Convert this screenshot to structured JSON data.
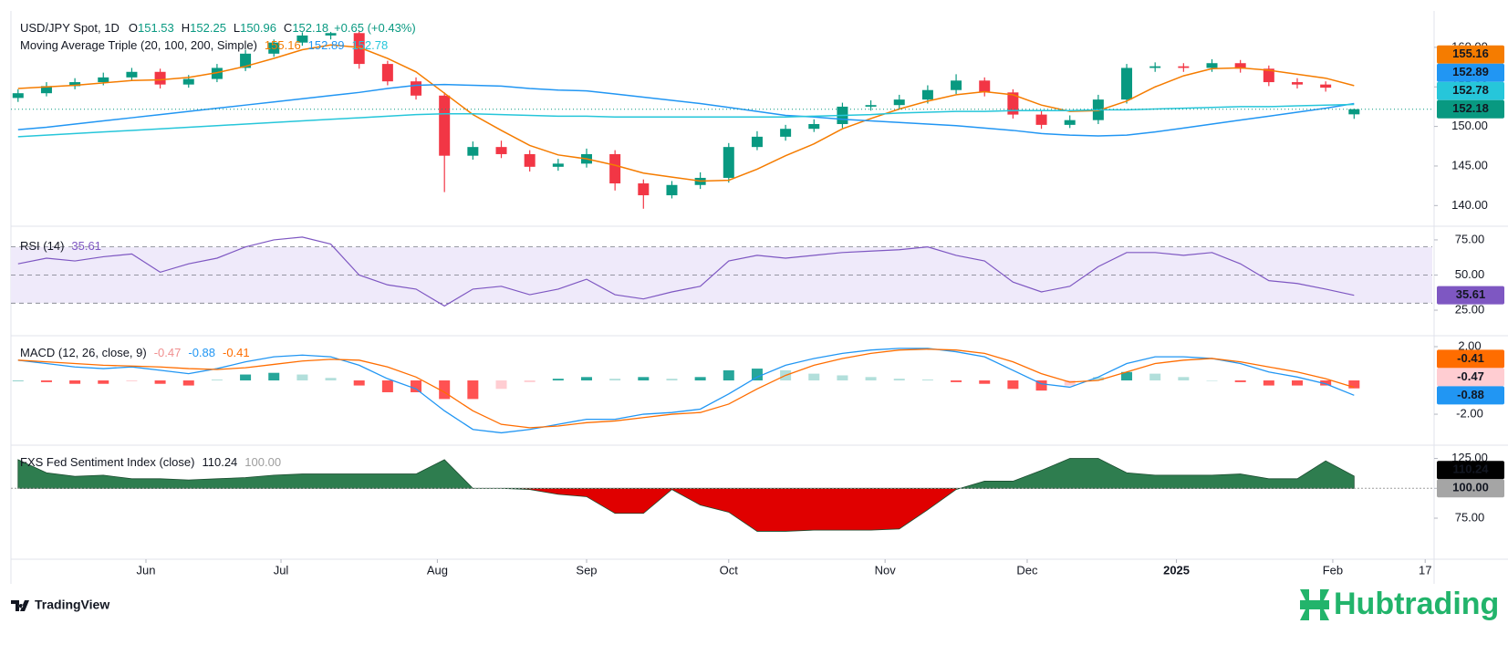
{
  "chart_data": [
    {
      "type": "candlestick",
      "title": "USD/JPY Spot, 1D",
      "ohlc_labels": [
        "O",
        "H",
        "L",
        "C"
      ],
      "change": "+0.65 (+0.43%)",
      "x": [
        0,
        4,
        8,
        12,
        16,
        20,
        24,
        28,
        32,
        36,
        40,
        44,
        48,
        52,
        56,
        60,
        64,
        68,
        72,
        76,
        80,
        84,
        88,
        92,
        96,
        100,
        104,
        108,
        112,
        116,
        120,
        124,
        128,
        132,
        136,
        140,
        144,
        148,
        152,
        156,
        160,
        164,
        168,
        172,
        176,
        180,
        184,
        188
      ],
      "xlim": [
        -1,
        199
      ],
      "xticks": [
        {
          "value": 18,
          "label": "Jun"
        },
        {
          "value": 37,
          "label": "Jul"
        },
        {
          "value": 59,
          "label": "Aug"
        },
        {
          "value": 80,
          "label": "Sep"
        },
        {
          "value": 100,
          "label": "Oct"
        },
        {
          "value": 122,
          "label": "Nov"
        },
        {
          "value": 142,
          "label": "Dec"
        },
        {
          "value": 163,
          "label": "2025"
        },
        {
          "value": 185,
          "label": "Feb"
        },
        {
          "value": 198,
          "label": "17"
        }
      ],
      "open": [
        153.6,
        154.2,
        155.1,
        155.6,
        156.2,
        156.9,
        155.3,
        156.0,
        157.4,
        159.2,
        160.6,
        161.5,
        161.8,
        157.9,
        155.7,
        153.9,
        146.3,
        147.4,
        146.5,
        144.9,
        145.3,
        146.5,
        142.8,
        141.3,
        142.6,
        143.5,
        147.4,
        148.7,
        149.7,
        150.3,
        152.5,
        152.7,
        153.4,
        154.6,
        155.8,
        154.3,
        151.5,
        150.2,
        150.8,
        153.4,
        157.4,
        157.6,
        157.4,
        158.0,
        157.3,
        155.6,
        155.3,
        151.53
      ],
      "high": [
        154.7,
        155.6,
        156.1,
        156.8,
        157.4,
        157.3,
        156.5,
        157.9,
        159.7,
        161.0,
        161.9,
        161.95,
        162.0,
        158.3,
        156.2,
        154.3,
        148.1,
        148.2,
        147.0,
        145.9,
        147.2,
        147.0,
        143.3,
        143.1,
        144.2,
        147.9,
        149.4,
        150.2,
        150.9,
        153.0,
        153.3,
        154.0,
        155.2,
        156.6,
        156.2,
        154.7,
        152.0,
        151.4,
        154.0,
        157.9,
        158.1,
        158.0,
        158.5,
        158.4,
        157.7,
        156.1,
        155.7,
        152.25
      ],
      "low": [
        153.1,
        153.8,
        154.7,
        155.2,
        155.8,
        154.8,
        154.9,
        155.6,
        157.0,
        158.8,
        160.2,
        161.0,
        157.3,
        155.2,
        153.4,
        141.7,
        145.8,
        146.0,
        144.3,
        144.4,
        144.8,
        141.9,
        139.6,
        140.9,
        142.1,
        142.9,
        147.0,
        148.2,
        149.3,
        149.8,
        152.0,
        152.2,
        152.9,
        154.1,
        153.8,
        151.0,
        149.7,
        149.8,
        150.3,
        152.9,
        156.9,
        156.9,
        156.9,
        156.8,
        155.1,
        154.8,
        154.4,
        150.96
      ],
      "close": [
        154.2,
        155.1,
        155.6,
        156.2,
        156.9,
        155.3,
        156.0,
        157.4,
        159.2,
        160.6,
        161.5,
        161.8,
        157.9,
        155.7,
        153.9,
        146.3,
        147.4,
        146.5,
        144.9,
        145.3,
        146.5,
        142.8,
        141.3,
        142.6,
        143.5,
        147.4,
        148.7,
        149.7,
        150.3,
        152.5,
        152.7,
        153.4,
        154.6,
        155.8,
        154.3,
        151.5,
        150.2,
        150.8,
        153.4,
        157.4,
        157.6,
        157.4,
        158.0,
        157.3,
        155.6,
        155.3,
        154.9,
        152.18
      ],
      "up_color": "#089981",
      "down_color": "#f23645",
      "ylim": [
        137.5,
        164.6
      ],
      "yticks": [
        {
          "value": 140,
          "label": "140.00"
        },
        {
          "value": 145,
          "label": "145.00"
        },
        {
          "value": 150,
          "label": "150.00"
        },
        {
          "value": 155,
          "label": "155.00"
        },
        {
          "value": 160,
          "label": "160.00"
        }
      ],
      "ma_title": "Moving Average Triple (20, 100, 200, Simple)",
      "ma_lines": [
        {
          "color": "#f57c00",
          "values": [
            154.8,
            155.0,
            155.2,
            155.5,
            155.8,
            155.9,
            156.2,
            156.8,
            157.6,
            158.6,
            159.7,
            160.3,
            160.0,
            158.6,
            156.9,
            154.2,
            151.5,
            149.5,
            147.6,
            146.4,
            145.9,
            145.1,
            144.1,
            143.6,
            143.1,
            143.2,
            144.6,
            146.3,
            147.8,
            149.7,
            151.0,
            152.2,
            153.2,
            154.0,
            154.4,
            154.0,
            152.7,
            151.9,
            152.0,
            153.2,
            155.0,
            156.4,
            157.3,
            157.4,
            157.1,
            156.6,
            156.1,
            155.16
          ]
        },
        {
          "color": "#2196f3",
          "values": [
            149.6,
            149.9,
            150.3,
            150.7,
            151.1,
            151.5,
            151.9,
            152.3,
            152.7,
            153.1,
            153.5,
            153.9,
            154.3,
            154.8,
            155.2,
            155.3,
            155.2,
            155.1,
            154.8,
            154.6,
            154.5,
            154.1,
            153.7,
            153.3,
            152.9,
            152.4,
            151.9,
            151.4,
            151.2,
            150.9,
            150.7,
            150.5,
            150.3,
            150.1,
            149.8,
            149.5,
            149.1,
            148.9,
            148.8,
            148.9,
            149.3,
            149.8,
            150.3,
            150.8,
            151.3,
            151.8,
            152.3,
            152.89
          ]
        },
        {
          "color": "#26c6da",
          "values": [
            148.7,
            148.9,
            149.1,
            149.3,
            149.5,
            149.7,
            149.9,
            150.1,
            150.3,
            150.5,
            150.7,
            150.9,
            151.1,
            151.3,
            151.5,
            151.6,
            151.6,
            151.5,
            151.4,
            151.3,
            151.3,
            151.2,
            151.2,
            151.2,
            151.2,
            151.2,
            151.2,
            151.2,
            151.3,
            151.4,
            151.5,
            151.7,
            151.8,
            151.9,
            151.9,
            152.0,
            152.0,
            152.0,
            152.1,
            152.1,
            152.2,
            152.3,
            152.4,
            152.5,
            152.5,
            152.6,
            152.7,
            152.78
          ]
        }
      ]
    },
    {
      "type": "line",
      "title": "RSI (14)",
      "color": "#7e57c2",
      "band_color": "#efeafa",
      "values": [
        58,
        62,
        60,
        63,
        65,
        52,
        58,
        62,
        70,
        75,
        77,
        72,
        50,
        43,
        40,
        28,
        40,
        42,
        36,
        40,
        47,
        36,
        33,
        38,
        42,
        60,
        64,
        62,
        64,
        66,
        67,
        68,
        70,
        64,
        60,
        45,
        38,
        42,
        56,
        66,
        66,
        64,
        66,
        58,
        46,
        44,
        40,
        35.61
      ],
      "levels": [
        30,
        50,
        70
      ],
      "ylim": [
        7.5,
        83.4
      ],
      "yticks": [
        {
          "value": 25,
          "label": "25.00"
        },
        {
          "value": 50,
          "label": "50.00"
        },
        {
          "value": 75,
          "label": "75.00"
        }
      ]
    },
    {
      "type": "macd",
      "title": "MACD (12, 26, close, 9)",
      "macd": {
        "color": "#2196f3",
        "values": [
          1.2,
          1.0,
          0.8,
          0.7,
          0.8,
          0.6,
          0.4,
          0.7,
          1.1,
          1.4,
          1.5,
          1.4,
          0.9,
          0.1,
          -0.5,
          -1.8,
          -2.9,
          -3.1,
          -2.9,
          -2.6,
          -2.3,
          -2.3,
          -2.0,
          -1.9,
          -1.7,
          -0.8,
          0.2,
          0.9,
          1.3,
          1.6,
          1.8,
          1.9,
          1.9,
          1.7,
          1.4,
          0.6,
          -0.2,
          -0.4,
          0.2,
          1.0,
          1.4,
          1.4,
          1.3,
          1.0,
          0.5,
          0.2,
          -0.2,
          -0.88
        ]
      },
      "signal": {
        "color": "#ff6d00",
        "values": [
          1.2,
          1.1,
          1.0,
          0.9,
          0.85,
          0.8,
          0.7,
          0.65,
          0.75,
          0.95,
          1.15,
          1.25,
          1.2,
          0.8,
          0.2,
          -0.7,
          -1.8,
          -2.6,
          -2.8,
          -2.7,
          -2.5,
          -2.4,
          -2.2,
          -2.0,
          -1.9,
          -1.4,
          -0.5,
          0.3,
          0.9,
          1.3,
          1.6,
          1.8,
          1.85,
          1.8,
          1.6,
          1.1,
          0.4,
          -0.1,
          0.0,
          0.5,
          1.0,
          1.2,
          1.3,
          1.1,
          0.8,
          0.5,
          0.1,
          -0.41
        ]
      },
      "histogram": {
        "colors": [
          "#26a69a",
          "#b2dfdb",
          "#ffcdd2",
          "#ff5252"
        ],
        "values": [
          0,
          -0.1,
          -0.2,
          -0.2,
          -0.05,
          -0.2,
          -0.3,
          0.05,
          0.35,
          0.45,
          0.35,
          0.15,
          -0.3,
          -0.7,
          -0.7,
          -1.1,
          -1.1,
          -0.5,
          -0.1,
          0.1,
          0.2,
          0.1,
          0.2,
          0.1,
          0.2,
          0.6,
          0.7,
          0.6,
          0.4,
          0.3,
          0.2,
          0.1,
          0.05,
          -0.1,
          -0.2,
          -0.5,
          -0.6,
          -0.3,
          0.2,
          0.5,
          0.4,
          0.2,
          0.0,
          -0.1,
          -0.3,
          -0.3,
          -0.3,
          -0.47
        ]
      },
      "ylim": [
        -3.78,
        2.54
      ],
      "yticks": [
        {
          "value": -2,
          "label": "-2.00"
        },
        {
          "value": 2,
          "label": "2.00"
        }
      ]
    },
    {
      "type": "area",
      "title": "FXS Fed Sentiment Index (close)",
      "values": [
        124,
        113,
        110,
        111,
        108,
        108,
        107,
        108,
        109,
        111,
        112,
        112,
        112,
        112,
        112,
        124,
        100,
        100,
        99,
        95,
        93,
        79,
        79,
        99,
        86,
        80,
        64,
        64,
        65,
        65,
        65,
        66,
        82,
        99,
        106,
        106,
        115,
        125,
        125,
        113,
        111,
        111,
        111,
        112,
        108,
        108,
        123,
        110.24
      ],
      "baseline": {
        "value": 100,
        "label": "100.00"
      },
      "above_color": "#2e7d4f",
      "below_color": "#e00000",
      "ylim": [
        41.4,
        134.6
      ],
      "yticks": [
        {
          "value": 75,
          "label": "75.00"
        },
        {
          "value": 100,
          "label": "100.00"
        },
        {
          "value": 125,
          "label": "125.00"
        }
      ]
    }
  ],
  "branding": {
    "platform": "TradingView",
    "watermark": "Hubtrading"
  }
}
